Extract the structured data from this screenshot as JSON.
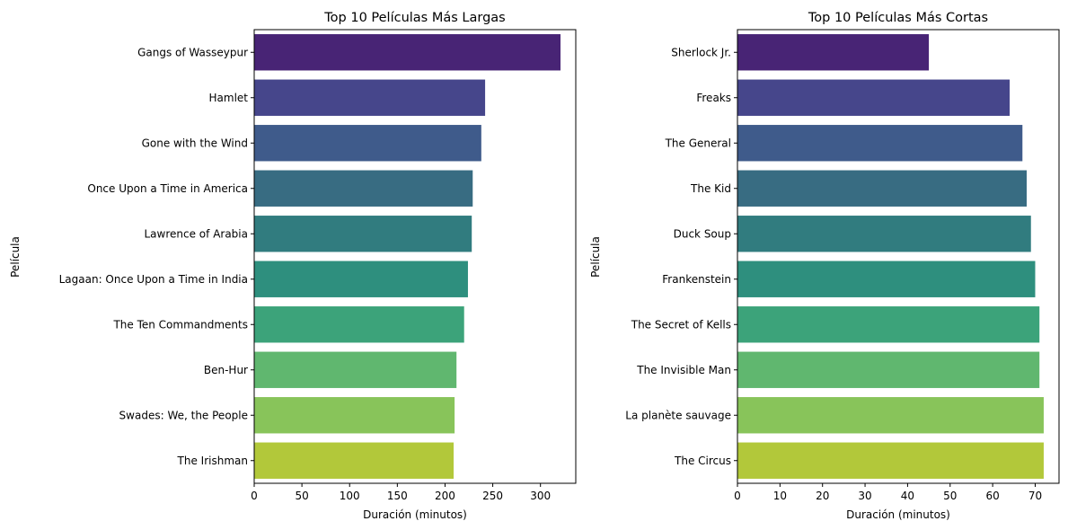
{
  "chart_data": [
    {
      "type": "bar",
      "orientation": "horizontal",
      "title": "Top 10 Películas Más Largas",
      "xlabel": "Duración (minutos)",
      "ylabel": "Película",
      "categories": [
        "Gangs of Wasseypur",
        "Hamlet",
        "Gone with the Wind",
        "Once Upon a Time in America",
        "Lawrence of Arabia",
        "Lagaan: Once Upon a Time in India",
        "The Ten Commandments",
        "Ben-Hur",
        "Swades: We, the People",
        "The Irishman"
      ],
      "values": [
        321,
        242,
        238,
        229,
        228,
        224,
        220,
        212,
        210,
        209
      ],
      "xlim": [
        0,
        337
      ],
      "xticks": [
        0,
        50,
        100,
        150,
        200,
        250,
        300
      ],
      "grid": false
    },
    {
      "type": "bar",
      "orientation": "horizontal",
      "title": "Top 10 Películas Más Cortas",
      "xlabel": "Duración (minutos)",
      "ylabel": "Película",
      "categories": [
        "Sherlock Jr.",
        "Freaks",
        "The General",
        "The Kid",
        "Duck Soup",
        "Frankenstein",
        "The Secret of Kells",
        "The Invisible Man",
        "La planète sauvage",
        "The Circus"
      ],
      "values": [
        45,
        64,
        67,
        68,
        69,
        70,
        71,
        71,
        72,
        72
      ],
      "xlim": [
        0,
        75.6
      ],
      "xticks": [
        0,
        10,
        20,
        30,
        40,
        50,
        60,
        70
      ],
      "grid": false
    }
  ],
  "colors": [
    "#482475",
    "#472d7b",
    "#3e4989",
    "#31688e",
    "#26828e",
    "#1f9e89",
    "#35b779",
    "#6ece58",
    "#86c35a",
    "#b5de2b"
  ],
  "palette": [
    "#482475",
    "#46468b",
    "#3f5b8b",
    "#386c82",
    "#317c7f",
    "#2e8f7e",
    "#3ca37a",
    "#60b76f",
    "#88c45a",
    "#b2c83a"
  ]
}
